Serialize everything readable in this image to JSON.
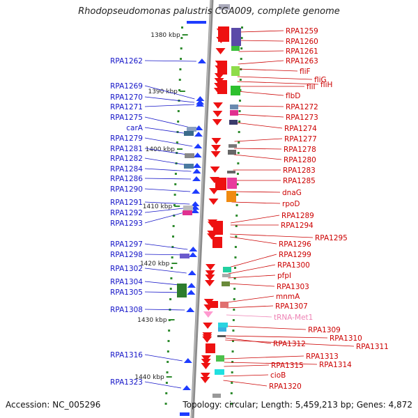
{
  "title": "Rhodopseudomonas palustris CGA009, complete genome",
  "footer": {
    "accession": "Accession: NC_005296",
    "summary": "Topology: circular; Length: 5,459,213 bp; Genes: 4,872"
  },
  "colors": {
    "left_label": "#1414c8",
    "right_label": "#cc0000",
    "trna_label": "#ee82b4",
    "left_arrow": "#1e3cff",
    "right_arrow": "#ee1111",
    "trna_arrow": "#ff9ad0",
    "axis_line": "#8c8c8c",
    "tick_dot": "#2e8b2e"
  },
  "scale_ticks": [
    {
      "label": "1380 kbp"
    },
    {
      "label": "1390 kbp"
    },
    {
      "label": "1400 kbp"
    },
    {
      "label": "1410 kbp"
    },
    {
      "label": "1420 kbp"
    },
    {
      "label": "1430 kbp"
    },
    {
      "label": "1440 kbp"
    }
  ],
  "left_genes": [
    {
      "label": "RPA1262"
    },
    {
      "label": "RPA1269"
    },
    {
      "label": "RPA1270"
    },
    {
      "label": "RPA1271"
    },
    {
      "label": "RPA1275"
    },
    {
      "label": "carA"
    },
    {
      "label": "RPA1279"
    },
    {
      "label": "RPA1281"
    },
    {
      "label": "RPA1282"
    },
    {
      "label": "RPA1284"
    },
    {
      "label": "RPA1286"
    },
    {
      "label": "RPA1290"
    },
    {
      "label": "RPA1291"
    },
    {
      "label": "RPA1292"
    },
    {
      "label": "RPA1293"
    },
    {
      "label": "RPA1297"
    },
    {
      "label": "RPA1298"
    },
    {
      "label": "RPA1302"
    },
    {
      "label": "RPA1304"
    },
    {
      "label": "RPA1305"
    },
    {
      "label": "RPA1308"
    },
    {
      "label": "RPA1316"
    },
    {
      "label": "RPA1323"
    }
  ],
  "right_genes": [
    {
      "label": "RPA1259",
      "type": "gene"
    },
    {
      "label": "RPA1260",
      "type": "gene"
    },
    {
      "label": "RPA1261",
      "type": "gene"
    },
    {
      "label": "RPA1263",
      "type": "gene"
    },
    {
      "label": "fliF",
      "type": "gene"
    },
    {
      "label": "fliG",
      "type": "gene"
    },
    {
      "label": "fliH",
      "type": "gene"
    },
    {
      "label": "fliI",
      "type": "gene"
    },
    {
      "label": "flbD",
      "type": "gene"
    },
    {
      "label": "RPA1272",
      "type": "gene"
    },
    {
      "label": "RPA1273",
      "type": "gene"
    },
    {
      "label": "RPA1274",
      "type": "gene"
    },
    {
      "label": "RPA1277",
      "type": "gene"
    },
    {
      "label": "RPA1278",
      "type": "gene"
    },
    {
      "label": "RPA1280",
      "type": "gene"
    },
    {
      "label": "RPA1283",
      "type": "gene"
    },
    {
      "label": "RPA1285",
      "type": "gene"
    },
    {
      "label": "dnaG",
      "type": "gene"
    },
    {
      "label": "rpoD",
      "type": "gene"
    },
    {
      "label": "RPA1289",
      "type": "gene"
    },
    {
      "label": "RPA1294",
      "type": "gene"
    },
    {
      "label": "RPA1295",
      "type": "gene"
    },
    {
      "label": "RPA1296",
      "type": "gene"
    },
    {
      "label": "RPA1299",
      "type": "gene"
    },
    {
      "label": "RPA1300",
      "type": "gene"
    },
    {
      "label": "pfpI",
      "type": "gene"
    },
    {
      "label": "RPA1303",
      "type": "gene"
    },
    {
      "label": "mnmA",
      "type": "gene"
    },
    {
      "label": "RPA1307",
      "type": "gene"
    },
    {
      "label": "tRNA-Met1",
      "type": "trna"
    },
    {
      "label": "RPA1309",
      "type": "gene"
    },
    {
      "label": "RPA1310",
      "type": "gene"
    },
    {
      "label": "RPA1311",
      "type": "gene"
    },
    {
      "label": "RPA1312",
      "type": "gene"
    },
    {
      "label": "RPA1313",
      "type": "gene"
    },
    {
      "label": "RPA1314",
      "type": "gene"
    },
    {
      "label": "RPA1315",
      "type": "gene"
    },
    {
      "label": "cioB",
      "type": "gene"
    },
    {
      "label": "RPA1320",
      "type": "gene"
    }
  ]
}
